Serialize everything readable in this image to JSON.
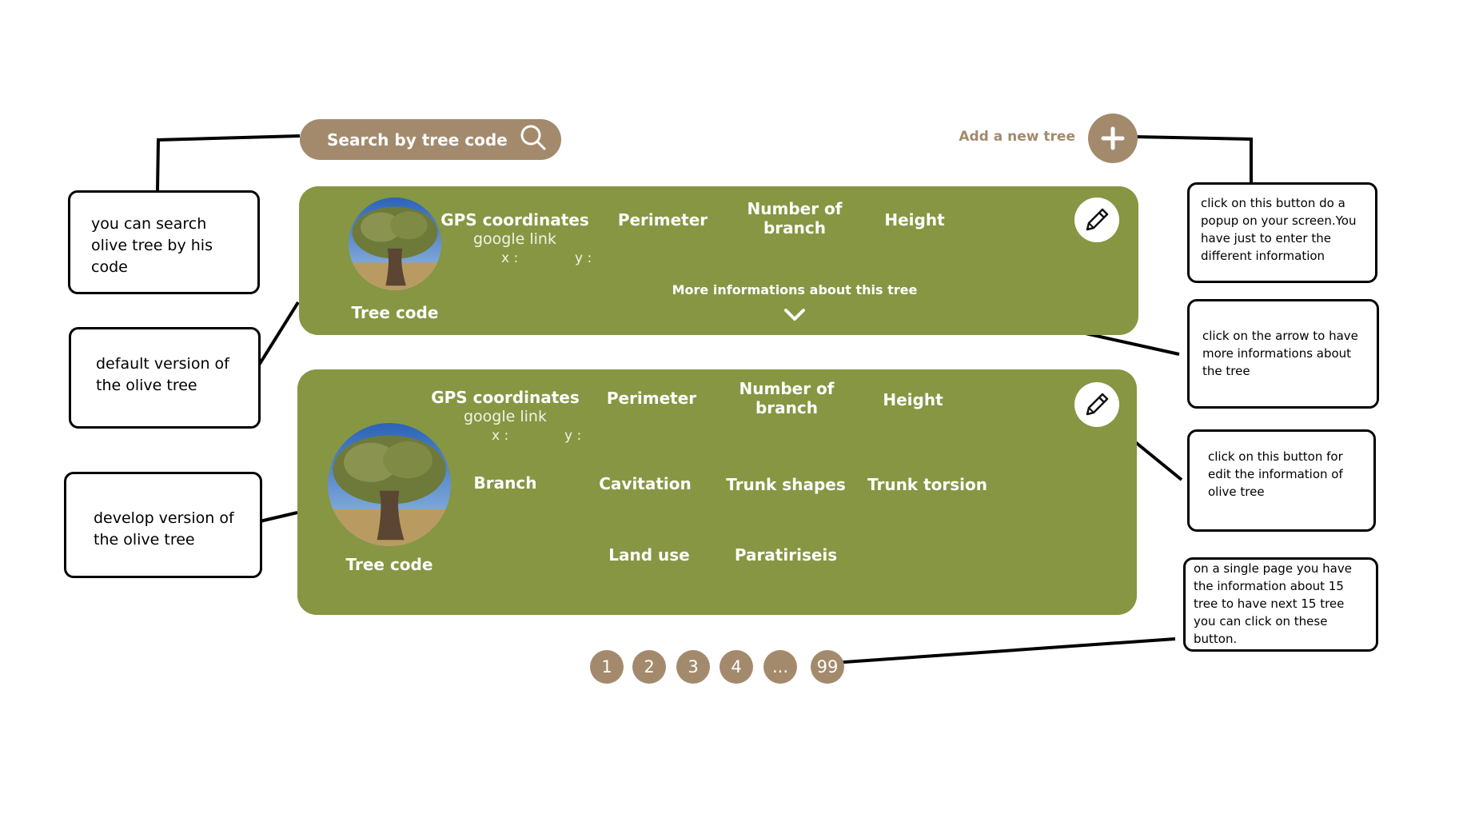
{
  "header": {
    "search_label": "Search by tree code",
    "search_icon": "magnifier",
    "add_label": "Add a new tree",
    "add_icon": "plus"
  },
  "default_card": {
    "gps_label": "GPS coordinates",
    "gps_link": "google link",
    "x_label": "x :",
    "y_label": "y :",
    "perimeter": "Perimeter",
    "branch_count": "Number of branch",
    "height": "Height",
    "tree_code": "Tree code",
    "more_info": "More informations about this tree",
    "edit_icon": "pencil",
    "expand_icon": "chevron-down"
  },
  "develop_card": {
    "gps_label": "GPS coordinates",
    "gps_link": "google link",
    "x_label": "x :",
    "y_label": "y :",
    "perimeter": "Perimeter",
    "branch_count": "Number of branch",
    "height": "Height",
    "branch": "Branch",
    "cavitation": "Cavitation",
    "trunk_shapes": "Trunk shapes",
    "trunk_torsion": "Trunk torsion",
    "land_use": "Land use",
    "paratiriseis": "Paratiriseis",
    "tree_code": "Tree code",
    "edit_icon": "pencil"
  },
  "pagination": [
    "1",
    "2",
    "3",
    "4",
    "...",
    "99"
  ],
  "notes": {
    "search": [
      "you can search",
      "olive tree by his",
      "code"
    ],
    "default_version": [
      "default version of",
      "the olive tree"
    ],
    "develop_version": [
      "develop version of",
      "the olive tree"
    ],
    "add_popup": [
      "click on this button do  a",
      "popup on your screen.You",
      "have just to enter the",
      "different information"
    ],
    "arrow": [
      "click on the arrow to have",
      "more informations about",
      "the tree"
    ],
    "edit": [
      "click on this button for",
      "edit the information of",
      "olive tree"
    ],
    "pages": [
      "on a single page you have",
      "the information about 15",
      "tree to have next 15 tree",
      "you can click on these",
      "button."
    ]
  },
  "colors": {
    "card_green": "#869642",
    "brown": "#a38a6c",
    "white": "#ffffff"
  }
}
